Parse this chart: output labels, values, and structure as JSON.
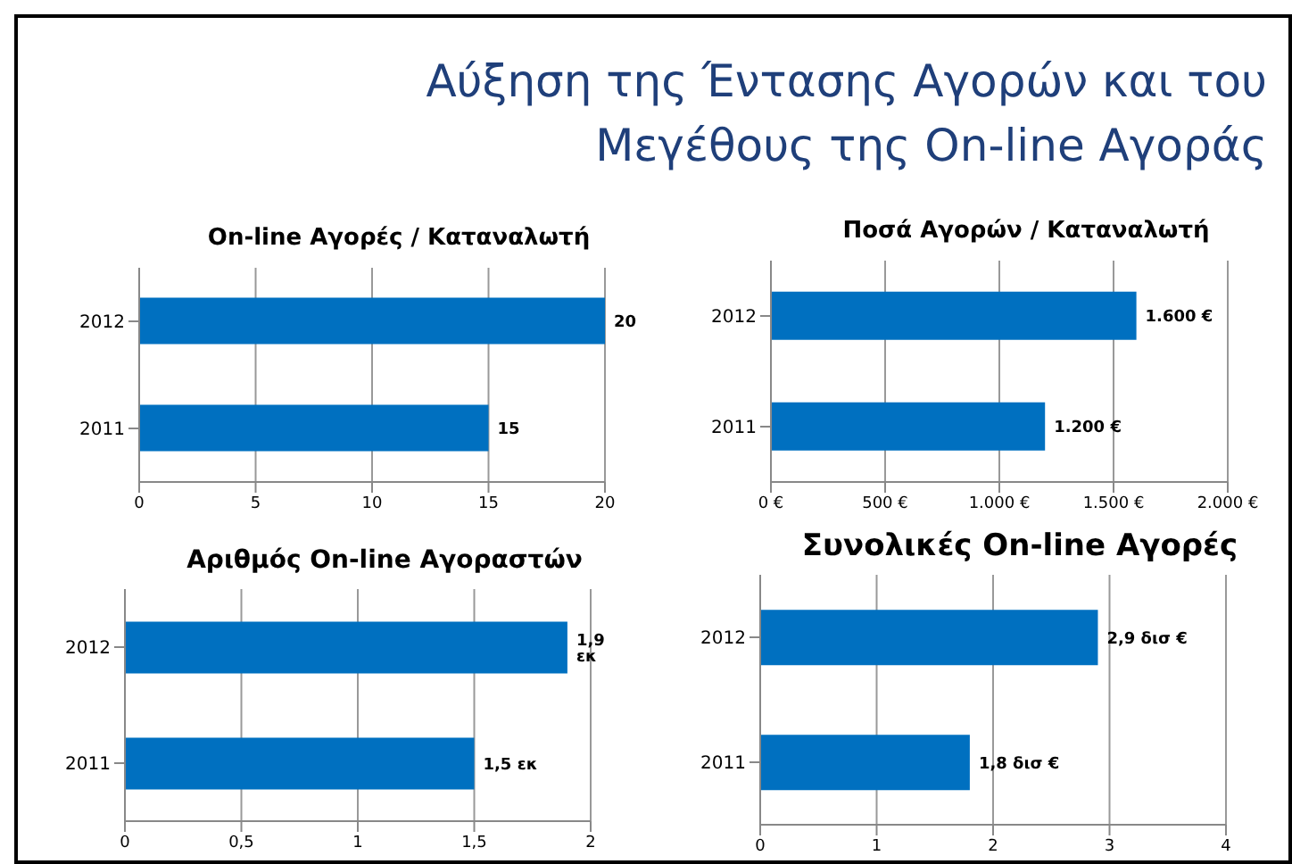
{
  "chart_data": [
    {
      "type": "other",
      "title": "Αύξηση της Έντασης Αγορών και του Μεγέθους της On-line Αγοράς"
    },
    {
      "type": "bar",
      "orientation": "horizontal",
      "title": "On-line Αγορές / Καταναλωτή",
      "categories": [
        "2012",
        "2011"
      ],
      "values": [
        20,
        15
      ],
      "value_labels": [
        "20",
        "15"
      ],
      "color": "#0070c0",
      "xlim": [
        0,
        20
      ],
      "xticks": [
        0,
        5,
        10,
        15,
        20
      ],
      "grid": "x"
    },
    {
      "type": "bar",
      "orientation": "horizontal",
      "title": "Ποσά Αγορών  / Καταναλωτή",
      "categories": [
        "2012",
        "2011"
      ],
      "values": [
        1600,
        1200
      ],
      "value_labels": [
        "1.600 €",
        "1.200 €"
      ],
      "color": "#0070c0",
      "xlim": [
        0,
        2000
      ],
      "xticks": [
        {
          "value": 0,
          "label": "0 €"
        },
        {
          "value": 500,
          "label": "500 €"
        },
        {
          "value": 1000,
          "label": "1.000 €"
        },
        {
          "value": 1500,
          "label": "1.500 €"
        },
        {
          "value": 2000,
          "label": "2.000 €"
        }
      ],
      "grid": "x"
    },
    {
      "type": "bar",
      "orientation": "horizontal",
      "title": "Αριθμός On-line Αγοραστών",
      "categories": [
        "2012",
        "2011"
      ],
      "values": [
        1.9,
        1.5
      ],
      "value_labels": [
        "1,9 εκ",
        "1,5 εκ"
      ],
      "color": "#0070c0",
      "xlim": [
        0,
        2
      ],
      "xticks": [
        0,
        {
          "value": 0.5,
          "label": "0,5"
        },
        1,
        {
          "value": 1.5,
          "label": "1,5"
        },
        2
      ],
      "grid": "x"
    },
    {
      "type": "bar",
      "orientation": "horizontal",
      "title": "Συνολικές On-line Αγορές",
      "categories": [
        "2012",
        "2011"
      ],
      "values": [
        2.9,
        1.8
      ],
      "value_labels": [
        "2,9 δισ €",
        "1,8 δισ €"
      ],
      "color": "#0070c0",
      "xlim": [
        0,
        4
      ],
      "xticks": [
        0,
        1,
        2,
        3,
        4
      ],
      "grid": "x"
    }
  ]
}
